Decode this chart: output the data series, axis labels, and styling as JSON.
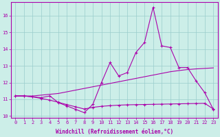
{
  "xlabel": "Windchill (Refroidissement éolien,°C)",
  "x": [
    0,
    1,
    2,
    3,
    4,
    5,
    6,
    7,
    8,
    9,
    10,
    11,
    12,
    13,
    14,
    15,
    16,
    17,
    18,
    19,
    20,
    21,
    22,
    23
  ],
  "line1": [
    11.2,
    11.2,
    11.15,
    11.1,
    11.2,
    10.8,
    10.6,
    10.4,
    10.2,
    10.7,
    12.0,
    13.2,
    12.4,
    12.6,
    13.8,
    14.4,
    16.5,
    14.2,
    14.1,
    12.9,
    12.9,
    12.1,
    11.4,
    10.4
  ],
  "line2": [
    11.2,
    11.2,
    11.2,
    11.25,
    11.3,
    11.35,
    11.45,
    11.55,
    11.65,
    11.75,
    11.85,
    11.95,
    12.05,
    12.15,
    12.25,
    12.35,
    12.45,
    12.55,
    12.65,
    12.72,
    12.78,
    12.82,
    12.85,
    12.88
  ],
  "line3": [
    11.2,
    11.2,
    11.15,
    11.05,
    10.95,
    10.82,
    10.68,
    10.55,
    10.42,
    10.52,
    10.58,
    10.62,
    10.65,
    10.67,
    10.68,
    10.69,
    10.7,
    10.71,
    10.72,
    10.73,
    10.74,
    10.75,
    10.76,
    10.42
  ],
  "bg_color": "#cceee8",
  "line_color": "#aa00aa",
  "grid_color": "#99cccc",
  "ylim": [
    9.9,
    16.8
  ],
  "yticks": [
    10,
    11,
    12,
    13,
    14,
    15,
    16
  ],
  "marker": "+"
}
